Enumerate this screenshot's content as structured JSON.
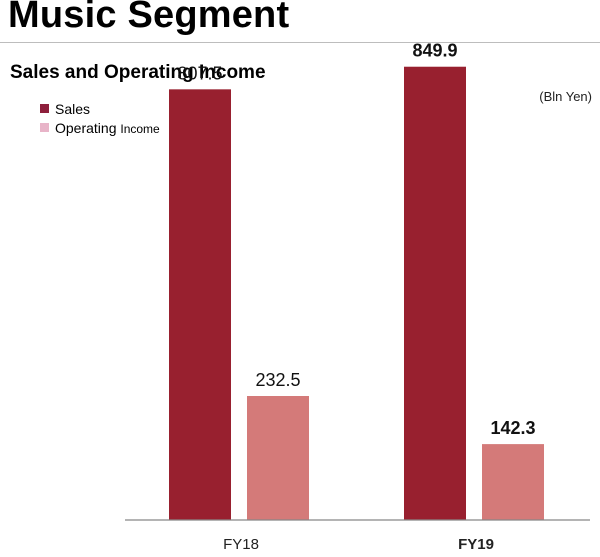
{
  "page_title": "Music Segment",
  "chart_title": "Sales and Operating Income",
  "unit": "(Bln Yen)",
  "legend": [
    {
      "label_main": "Operating",
      "label_small": "",
      "color": "#8e1f3c"
    },
    {
      "label_main": "Operating",
      "label_small": "Income",
      "color": "#e8b4c8"
    }
  ],
  "colors": {
    "sales_bar": "#98202f",
    "income_bar": "#d47a79",
    "axis": "#888888"
  },
  "chart_data": {
    "type": "bar",
    "categories": [
      "FY18",
      "FY19"
    ],
    "category_bold": [
      false,
      true
    ],
    "series": [
      {
        "name": "Sales",
        "values": [
          807.5,
          849.9
        ],
        "labels": [
          "807.5",
          "849.9"
        ]
      },
      {
        "name": "Operating Income",
        "values": [
          232.5,
          142.3
        ],
        "labels": [
          "232.5",
          "142.3"
        ]
      }
    ],
    "ylim": [
      0,
      900
    ],
    "grid": false,
    "legend_position": "top-left"
  }
}
